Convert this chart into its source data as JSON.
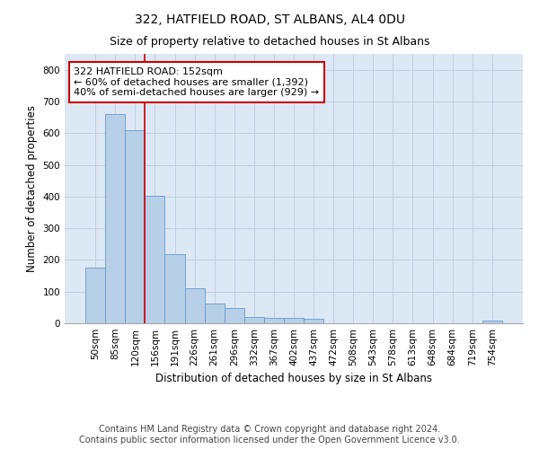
{
  "title": "322, HATFIELD ROAD, ST ALBANS, AL4 0DU",
  "subtitle": "Size of property relative to detached houses in St Albans",
  "xlabel": "Distribution of detached houses by size in St Albans",
  "ylabel": "Number of detached properties",
  "categories": [
    "50sqm",
    "85sqm",
    "120sqm",
    "156sqm",
    "191sqm",
    "226sqm",
    "261sqm",
    "296sqm",
    "332sqm",
    "367sqm",
    "402sqm",
    "437sqm",
    "472sqm",
    "508sqm",
    "543sqm",
    "578sqm",
    "613sqm",
    "648sqm",
    "684sqm",
    "719sqm",
    "754sqm"
  ],
  "values": [
    175,
    660,
    610,
    403,
    218,
    110,
    63,
    47,
    20,
    17,
    16,
    13,
    0,
    0,
    0,
    0,
    0,
    0,
    0,
    0,
    8
  ],
  "bar_color": "#b8cfe8",
  "bar_edge_color": "#6699cc",
  "marker_index": 3,
  "marker_label": "322 HATFIELD ROAD: 152sqm",
  "marker_line_color": "#cc0000",
  "annotation_line1": "← 60% of detached houses are smaller (1,392)",
  "annotation_line2": "40% of semi-detached houses are larger (929) →",
  "box_edge_color": "#cc0000",
  "ylim": [
    0,
    850
  ],
  "yticks": [
    0,
    100,
    200,
    300,
    400,
    500,
    600,
    700,
    800
  ],
  "grid_color": "#c0d0e0",
  "bg_color": "#dce8f4",
  "footnote1": "Contains HM Land Registry data © Crown copyright and database right 2024.",
  "footnote2": "Contains public sector information licensed under the Open Government Licence v3.0.",
  "title_fontsize": 10,
  "subtitle_fontsize": 9,
  "axis_label_fontsize": 8.5,
  "tick_fontsize": 7.5,
  "annotation_fontsize": 8,
  "footnote_fontsize": 7
}
